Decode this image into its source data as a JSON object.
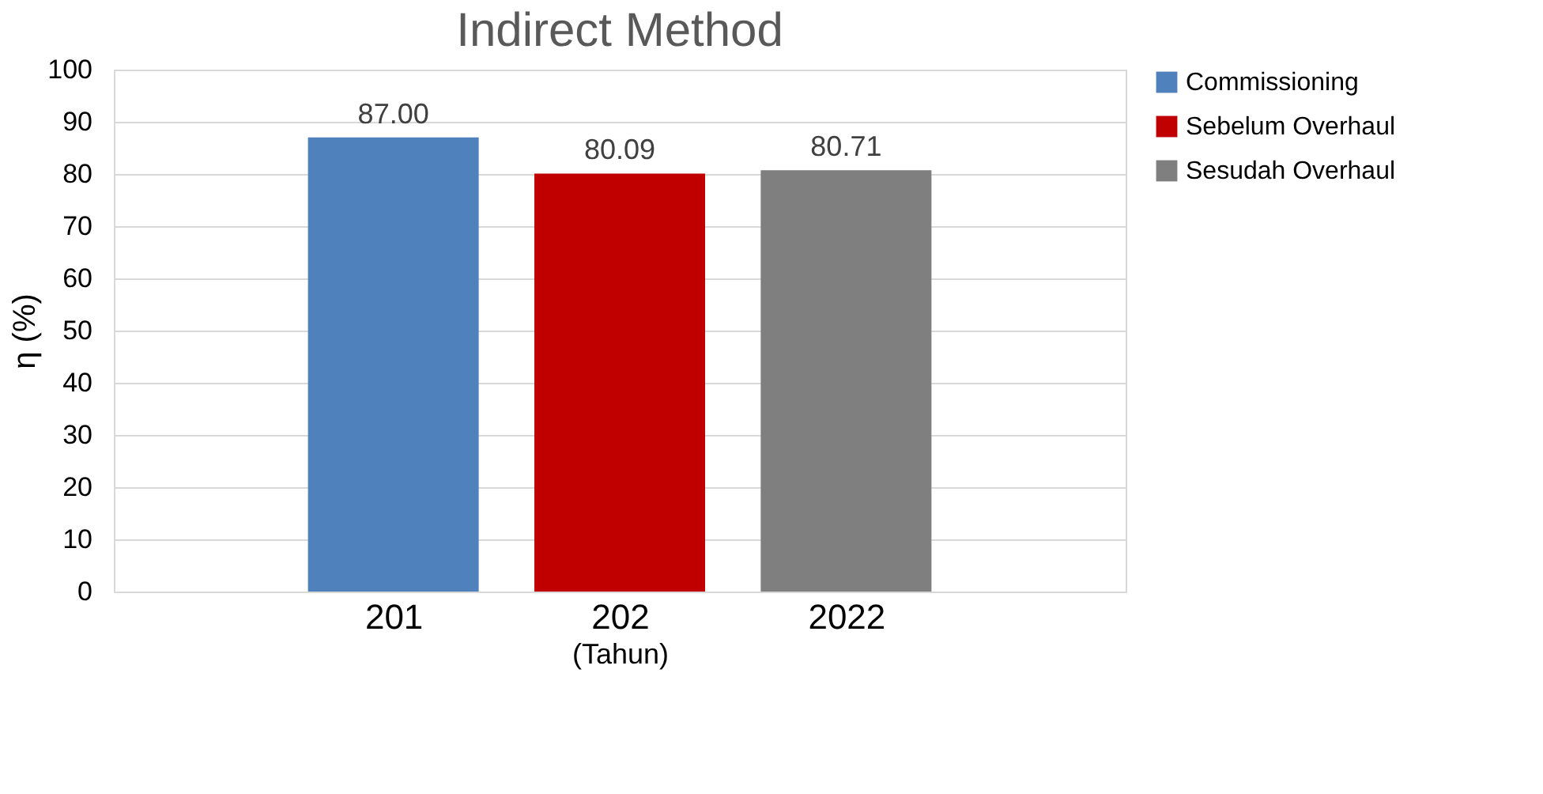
{
  "chart_data": {
    "type": "bar",
    "title": "Indirect Method",
    "xlabel": "(Tahun)",
    "ylabel": "η (%)",
    "categories": [
      "201",
      "202",
      "2022"
    ],
    "series": [
      {
        "name": "Commissioning",
        "color": "#4f81bd",
        "values": [
          87.0,
          null,
          null
        ],
        "value_labels": [
          "87.00",
          null,
          null
        ]
      },
      {
        "name": "Sebelum Overhaul",
        "color": "#c00000",
        "values": [
          null,
          80.09,
          null
        ],
        "value_labels": [
          null,
          "80.09",
          null
        ]
      },
      {
        "name": "Sesudah Overhaul",
        "color": "#7f7f7f",
        "values": [
          null,
          null,
          80.71
        ],
        "value_labels": [
          null,
          null,
          "80.71"
        ]
      }
    ],
    "ylim": [
      0,
      100
    ],
    "yticks": [
      0,
      10,
      20,
      30,
      40,
      50,
      60,
      70,
      80,
      90,
      100
    ],
    "grid": "y",
    "legend": "right"
  }
}
